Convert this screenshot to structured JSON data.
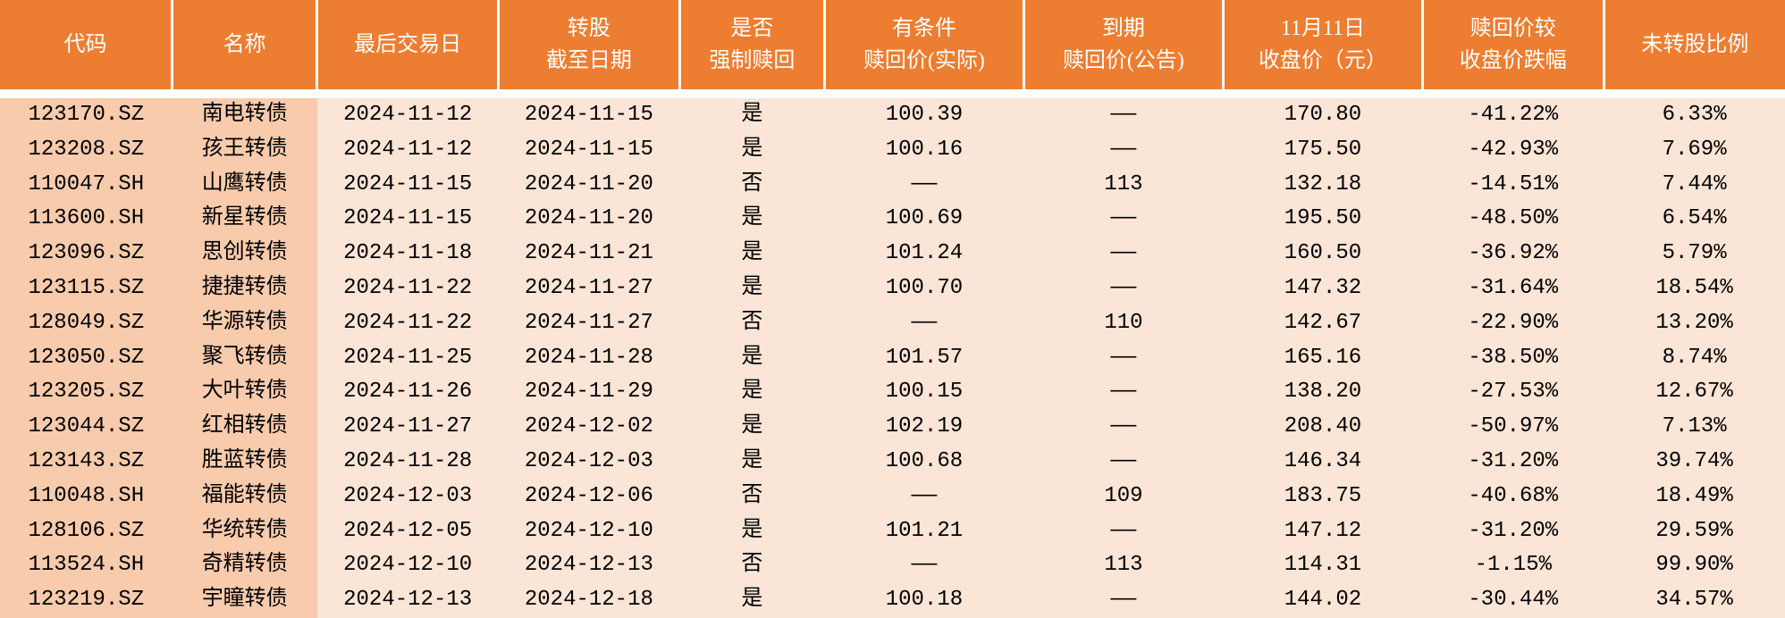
{
  "table": {
    "header_bg": "#ed7d31",
    "header_fg": "#ffffff",
    "row_bg": "#fbe5d6",
    "row_accent_bg": "#f8cbad",
    "border_color": "#ffffff",
    "font_size_header": 24,
    "font_size_body": 24,
    "columns": [
      {
        "key": "code",
        "label": "代码"
      },
      {
        "key": "name",
        "label": "名称"
      },
      {
        "key": "last_trade",
        "label": "最后交易日"
      },
      {
        "key": "conv_end",
        "label": "转股\n截至日期"
      },
      {
        "key": "is_forced",
        "label": "是否\n强制赎回"
      },
      {
        "key": "cond_price",
        "label": "有条件\n赎回价(实际)"
      },
      {
        "key": "mature_price",
        "label": "到期\n赎回价(公告)"
      },
      {
        "key": "close_price",
        "label": "11月11日\n收盘价（元）"
      },
      {
        "key": "drop_pct",
        "label": "赎回价较\n收盘价跌幅"
      },
      {
        "key": "unconv_pct",
        "label": "未转股比例"
      }
    ],
    "rows": [
      {
        "code": "123170.SZ",
        "name": "南电转债",
        "last_trade": "2024-11-12",
        "conv_end": "2024-11-15",
        "is_forced": "是",
        "cond_price": "100.39",
        "mature_price": "——",
        "close_price": "170.80",
        "drop_pct": "-41.22%",
        "unconv_pct": "6.33%"
      },
      {
        "code": "123208.SZ",
        "name": "孩王转债",
        "last_trade": "2024-11-12",
        "conv_end": "2024-11-15",
        "is_forced": "是",
        "cond_price": "100.16",
        "mature_price": "——",
        "close_price": "175.50",
        "drop_pct": "-42.93%",
        "unconv_pct": "7.69%"
      },
      {
        "code": "110047.SH",
        "name": "山鹰转债",
        "last_trade": "2024-11-15",
        "conv_end": "2024-11-20",
        "is_forced": "否",
        "cond_price": "——",
        "mature_price": "113",
        "close_price": "132.18",
        "drop_pct": "-14.51%",
        "unconv_pct": "7.44%"
      },
      {
        "code": "113600.SH",
        "name": "新星转债",
        "last_trade": "2024-11-15",
        "conv_end": "2024-11-20",
        "is_forced": "是",
        "cond_price": "100.69",
        "mature_price": "——",
        "close_price": "195.50",
        "drop_pct": "-48.50%",
        "unconv_pct": "6.54%"
      },
      {
        "code": "123096.SZ",
        "name": "思创转债",
        "last_trade": "2024-11-18",
        "conv_end": "2024-11-21",
        "is_forced": "是",
        "cond_price": "101.24",
        "mature_price": "——",
        "close_price": "160.50",
        "drop_pct": "-36.92%",
        "unconv_pct": "5.79%"
      },
      {
        "code": "123115.SZ",
        "name": "捷捷转债",
        "last_trade": "2024-11-22",
        "conv_end": "2024-11-27",
        "is_forced": "是",
        "cond_price": "100.70",
        "mature_price": "——",
        "close_price": "147.32",
        "drop_pct": "-31.64%",
        "unconv_pct": "18.54%"
      },
      {
        "code": "128049.SZ",
        "name": "华源转债",
        "last_trade": "2024-11-22",
        "conv_end": "2024-11-27",
        "is_forced": "否",
        "cond_price": "——",
        "mature_price": "110",
        "close_price": "142.67",
        "drop_pct": "-22.90%",
        "unconv_pct": "13.20%"
      },
      {
        "code": "123050.SZ",
        "name": "聚飞转债",
        "last_trade": "2024-11-25",
        "conv_end": "2024-11-28",
        "is_forced": "是",
        "cond_price": "101.57",
        "mature_price": "——",
        "close_price": "165.16",
        "drop_pct": "-38.50%",
        "unconv_pct": "8.74%"
      },
      {
        "code": "123205.SZ",
        "name": "大叶转债",
        "last_trade": "2024-11-26",
        "conv_end": "2024-11-29",
        "is_forced": "是",
        "cond_price": "100.15",
        "mature_price": "——",
        "close_price": "138.20",
        "drop_pct": "-27.53%",
        "unconv_pct": "12.67%"
      },
      {
        "code": "123044.SZ",
        "name": "红相转债",
        "last_trade": "2024-11-27",
        "conv_end": "2024-12-02",
        "is_forced": "是",
        "cond_price": "102.19",
        "mature_price": "——",
        "close_price": "208.40",
        "drop_pct": "-50.97%",
        "unconv_pct": "7.13%"
      },
      {
        "code": "123143.SZ",
        "name": "胜蓝转债",
        "last_trade": "2024-11-28",
        "conv_end": "2024-12-03",
        "is_forced": "是",
        "cond_price": "100.68",
        "mature_price": "——",
        "close_price": "146.34",
        "drop_pct": "-31.20%",
        "unconv_pct": "39.74%"
      },
      {
        "code": "110048.SH",
        "name": "福能转债",
        "last_trade": "2024-12-03",
        "conv_end": "2024-12-06",
        "is_forced": "否",
        "cond_price": "——",
        "mature_price": "109",
        "close_price": "183.75",
        "drop_pct": "-40.68%",
        "unconv_pct": "18.49%"
      },
      {
        "code": "128106.SZ",
        "name": "华统转债",
        "last_trade": "2024-12-05",
        "conv_end": "2024-12-10",
        "is_forced": "是",
        "cond_price": "101.21",
        "mature_price": "——",
        "close_price": "147.12",
        "drop_pct": "-31.20%",
        "unconv_pct": "29.59%"
      },
      {
        "code": "113524.SH",
        "name": "奇精转债",
        "last_trade": "2024-12-10",
        "conv_end": "2024-12-13",
        "is_forced": "否",
        "cond_price": "——",
        "mature_price": "113",
        "close_price": "114.31",
        "drop_pct": "-1.15%",
        "unconv_pct": "99.90%"
      },
      {
        "code": "123219.SZ",
        "name": "宇瞳转债",
        "last_trade": "2024-12-13",
        "conv_end": "2024-12-18",
        "is_forced": "是",
        "cond_price": "100.18",
        "mature_price": "——",
        "close_price": "144.02",
        "drop_pct": "-30.44%",
        "unconv_pct": "34.57%"
      }
    ]
  }
}
